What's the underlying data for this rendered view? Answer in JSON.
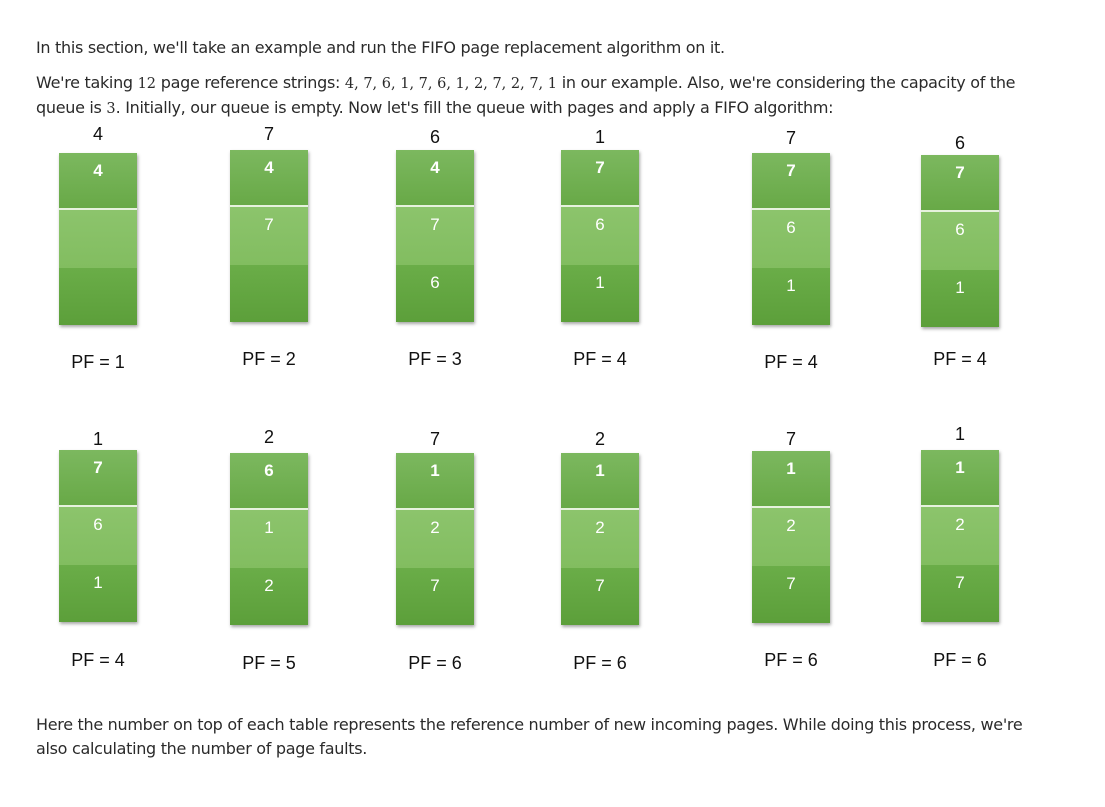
{
  "intro": "In this section, we'll take an example and run the FIFO page replacement algorithm on it.",
  "setup": {
    "part1": "We're taking ",
    "count": "12",
    "part2": " page reference strings: ",
    "sequence": "4, 7, 6, 1, 7, 6, 1, 2, 7, 2, 7, 1",
    "part3": " in our example. Also, we're considering the capacity of the queue is ",
    "capacity": "3",
    "part4": ". Initially, our queue is empty. Now let's fill the queue with pages and apply a FIFO algorithm:"
  },
  "steps": [
    {
      "incoming": "4",
      "slots": [
        "4",
        "",
        ""
      ],
      "pf": "PF = 1"
    },
    {
      "incoming": "7",
      "slots": [
        "4",
        "7",
        ""
      ],
      "pf": "PF = 2"
    },
    {
      "incoming": "6",
      "slots": [
        "4",
        "7",
        "6"
      ],
      "pf": "PF = 3"
    },
    {
      "incoming": "1",
      "slots": [
        "7",
        "6",
        "1"
      ],
      "pf": "PF = 4"
    },
    {
      "incoming": "7",
      "slots": [
        "7",
        "6",
        "1"
      ],
      "pf": "PF = 4"
    },
    {
      "incoming": "6",
      "slots": [
        "7",
        "6",
        "1"
      ],
      "pf": "PF = 4"
    },
    {
      "incoming": "1",
      "slots": [
        "7",
        "6",
        "1"
      ],
      "pf": "PF = 4"
    },
    {
      "incoming": "2",
      "slots": [
        "6",
        "1",
        "2"
      ],
      "pf": "PF = 5"
    },
    {
      "incoming": "7",
      "slots": [
        "1",
        "2",
        "7"
      ],
      "pf": "PF = 6"
    },
    {
      "incoming": "2",
      "slots": [
        "1",
        "2",
        "7"
      ],
      "pf": "PF = 6"
    },
    {
      "incoming": "7",
      "slots": [
        "1",
        "2",
        "7"
      ],
      "pf": "PF = 6"
    },
    {
      "incoming": "1",
      "slots": [
        "1",
        "2",
        "7"
      ],
      "pf": "PF = 6"
    }
  ],
  "explanation": "Here the number on top of each table represents the reference number of new incoming pages. While doing this process, we're also calculating the number of page faults.",
  "colors": {
    "queue_top": "#73b354",
    "queue_middle": "#87c166",
    "queue_bottom": "#63a641",
    "divider": "#e6f2dd"
  }
}
